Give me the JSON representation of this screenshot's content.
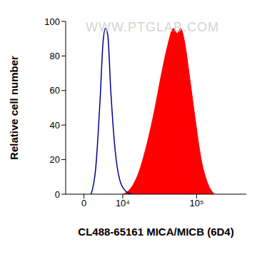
{
  "chart_data": {
    "type": "histogram",
    "x_label": "CL488-65161 MICA/MICB (6D4)",
    "y_label": "Relative cell number",
    "annotations": [
      "WWW.PTGLAB.COM"
    ],
    "xlim": [
      -4000,
      440000
    ],
    "xticks": [
      0,
      {
        "value": 10000,
        "label": "10⁴"
      },
      {
        "value": 100000,
        "label": "10⁵"
      }
    ],
    "ylim": [
      0,
      100
    ],
    "yticks": [
      0,
      20,
      40,
      60,
      80,
      100
    ],
    "grid": false,
    "series": [
      {
        "type": "area",
        "color": "#ff0000",
        "x": [
          10000,
          13000,
          17000,
          22000,
          28000,
          35000,
          42000,
          50000,
          56000,
          62000,
          70000,
          80000,
          95000,
          115000,
          140000,
          170000
        ],
        "values": [
          0,
          3,
          12,
          28,
          48,
          70,
          86,
          96,
          93,
          96,
          88,
          70,
          45,
          20,
          6,
          0
        ]
      },
      {
        "type": "line",
        "color": "#00008b",
        "x": [
          1500,
          2500,
          3500,
          4200,
          4800,
          5400,
          6200,
          7500,
          9000,
          11000,
          13500
        ],
        "values": [
          0,
          15,
          55,
          88,
          96,
          92,
          60,
          25,
          8,
          2,
          0
        ]
      }
    ]
  }
}
